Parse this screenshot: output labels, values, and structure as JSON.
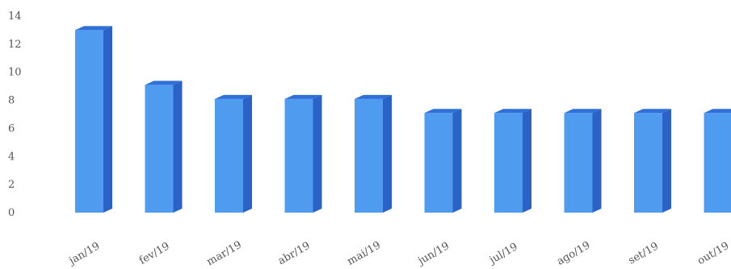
{
  "chart_data": {
    "type": "bar",
    "title": "",
    "xlabel": "",
    "ylabel": "",
    "ylim": [
      0,
      14
    ],
    "yticks": [
      0,
      2,
      4,
      6,
      8,
      10,
      12,
      14
    ],
    "grid": false,
    "legend": "none",
    "categories": [
      "jan/19",
      "fev/19",
      "mar/19",
      "abr/19",
      "mai/19",
      "jun/19",
      "jul/19",
      "ago/19",
      "set/19",
      "out/19"
    ],
    "values": [
      13.0,
      9.1,
      8.1,
      8.1,
      8.1,
      7.1,
      7.1,
      7.1,
      7.1,
      7.1
    ],
    "colors": {
      "bar_front": "#4f9bf0",
      "bar_top": "#2f6fd8",
      "bar_side": "#2a62c7",
      "axis_text": "#555555"
    }
  }
}
